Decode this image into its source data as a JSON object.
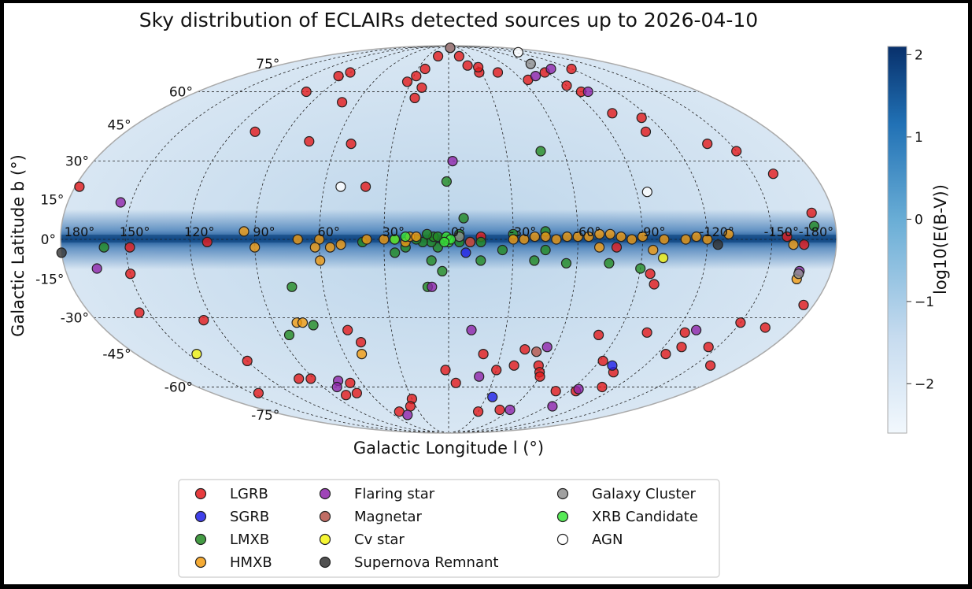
{
  "chart_data": {
    "type": "scatter",
    "projection": "mollweide",
    "title": "Sky distribution of ECLAIRs detected sources up to 2026-04-10",
    "xlabel": "Galactic Longitude l (°)",
    "ylabel": "Galactic Latitude b (°)",
    "x_ticks": [
      "180°",
      "150°",
      "120°",
      "90°",
      "60°",
      "30°",
      "0°",
      "-30°",
      "-60°",
      "-90°",
      "-120°",
      "-150°",
      "-180°"
    ],
    "y_ticks": [
      "75°",
      "60°",
      "45°",
      "30°",
      "15°",
      "0°",
      "-15°",
      "-30°",
      "-45°",
      "-60°",
      "-75°"
    ],
    "grid": true,
    "colorbar": {
      "label": "log10(E(B-V))",
      "ticks": [
        "2",
        "1",
        "0",
        "−1",
        "−2"
      ],
      "tick_values": [
        2,
        1,
        0,
        -1,
        -2
      ],
      "range": [
        -2.6,
        2.1
      ],
      "colors": [
        "#f2f8fd",
        "#c6dbef",
        "#6aaed6",
        "#2171b5",
        "#08306b"
      ]
    },
    "legend_position": "bottom-center",
    "series": [
      {
        "name": "LGRB",
        "color": "#e31a1c",
        "points": [
          [
            178,
            20
          ],
          [
            108,
            42
          ],
          [
            102,
            60
          ],
          [
            90,
            70
          ],
          [
            95,
            68
          ],
          [
            70,
            55
          ],
          [
            75,
            38
          ],
          [
            52,
            37
          ],
          [
            40,
            20
          ],
          [
            33,
            65
          ],
          [
            28,
            68
          ],
          [
            23,
            72
          ],
          [
            20,
            62
          ],
          [
            23,
            57
          ],
          [
            15,
            80
          ],
          [
            -5,
            87
          ],
          [
            -15,
            80
          ],
          [
            -20,
            74
          ],
          [
            -28,
            70
          ],
          [
            -30,
            73
          ],
          [
            -45,
            70
          ],
          [
            -65,
            66
          ],
          [
            -88,
            70
          ],
          [
            -90,
            63
          ],
          [
            -95,
            60
          ],
          [
            -120,
            72
          ],
          [
            -100,
            50
          ],
          [
            -115,
            48
          ],
          [
            -110,
            42
          ],
          [
            -138,
            37
          ],
          [
            -150,
            34
          ],
          [
            -160,
            25
          ],
          [
            -170,
            10
          ],
          [
            -157,
            1
          ],
          [
            -165,
            -2
          ],
          [
            148,
            -3
          ],
          [
            112,
            -1
          ],
          [
            -78,
            -3
          ],
          [
            -175,
            -25
          ],
          [
            150,
            -13
          ],
          [
            155,
            -28
          ],
          [
            125,
            -31
          ],
          [
            120,
            -48
          ],
          [
            145,
            -63
          ],
          [
            100,
            -56
          ],
          [
            92,
            -56
          ],
          [
            68,
            -58
          ],
          [
            70,
            -63
          ],
          [
            80,
            -64
          ],
          [
            53,
            -35
          ],
          [
            48,
            -40
          ],
          [
            -43,
            -43
          ],
          [
            -80,
            -37
          ],
          [
            -105,
            -36
          ],
          [
            -92,
            -48
          ],
          [
            -125,
            -36
          ],
          [
            -105,
            -53
          ],
          [
            -150,
            -32
          ],
          [
            -165,
            -34
          ],
          [
            -145,
            -42
          ],
          [
            -130,
            -42
          ],
          [
            -125,
            -45
          ],
          [
            -160,
            -50
          ],
          [
            -20,
            -45
          ],
          [
            -30,
            -52
          ],
          [
            -40,
            -50
          ],
          [
            -55,
            -50
          ],
          [
            -58,
            -53
          ],
          [
            -60,
            -55
          ],
          [
            -80,
            -62
          ],
          [
            -95,
            -62
          ],
          [
            -110,
            -60
          ],
          [
            -50,
            -72
          ],
          [
            -30,
            -73
          ],
          [
            -5,
            -58
          ],
          [
            30,
            -66
          ],
          [
            35,
            -70
          ],
          [
            50,
            -73
          ],
          [
            2,
            -52
          ],
          [
            -95,
            -13
          ],
          [
            -98,
            -17
          ],
          [
            -15,
            1
          ],
          [
            -10,
            -1
          ]
        ]
      },
      {
        "name": "SGRB",
        "color": "#1f1fe6",
        "points": [
          [
            -8,
            -5
          ],
          [
            -100,
            -50
          ],
          [
            -35,
            -65
          ]
        ]
      },
      {
        "name": "LMXB",
        "color": "#238b23",
        "points": [
          [
            160,
            -3
          ],
          [
            1,
            22
          ],
          [
            -7,
            8
          ],
          [
            -5,
            -1
          ],
          [
            -15,
            -1
          ],
          [
            -30,
            2
          ],
          [
            -45,
            3
          ],
          [
            -45,
            -4
          ],
          [
            -40,
            -8
          ],
          [
            -55,
            -9
          ],
          [
            -75,
            -9
          ],
          [
            -90,
            -11
          ],
          [
            -170,
            5
          ],
          [
            -48,
            34
          ],
          [
            -25,
            -4
          ],
          [
            -15,
            -8
          ],
          [
            20,
            -3
          ],
          [
            8,
            -8
          ],
          [
            5,
            -3
          ],
          [
            8,
            -1
          ],
          [
            7,
            1
          ],
          [
            12,
            -1
          ],
          [
            15,
            0
          ],
          [
            2,
            0
          ],
          [
            5,
            1
          ],
          [
            10,
            2
          ],
          [
            3,
            -12
          ],
          [
            10,
            -18
          ],
          [
            75,
            -18
          ],
          [
            85,
            -37
          ],
          [
            70,
            -33
          ],
          [
            25,
            -5
          ],
          [
            40,
            -1
          ],
          [
            -5,
            2
          ]
        ]
      },
      {
        "name": "HMXB",
        "color": "#f39c12",
        "points": [
          [
            95,
            3
          ],
          [
            70,
            0
          ],
          [
            60,
            0
          ],
          [
            62,
            -3
          ],
          [
            55,
            -3
          ],
          [
            50,
            -2
          ],
          [
            38,
            0
          ],
          [
            30,
            0
          ],
          [
            25,
            0
          ],
          [
            20,
            -1
          ],
          [
            18,
            1
          ],
          [
            15,
            1
          ],
          [
            -30,
            0
          ],
          [
            -35,
            0
          ],
          [
            -40,
            1
          ],
          [
            -45,
            1
          ],
          [
            -50,
            0
          ],
          [
            -55,
            1
          ],
          [
            -60,
            1
          ],
          [
            -65,
            1
          ],
          [
            -70,
            2
          ],
          [
            -75,
            2
          ],
          [
            -80,
            1
          ],
          [
            -85,
            0
          ],
          [
            -90,
            1
          ],
          [
            -100,
            0
          ],
          [
            -110,
            0
          ],
          [
            -120,
            0
          ],
          [
            -130,
            2
          ],
          [
            -160,
            -2
          ],
          [
            -165,
            -15
          ],
          [
            -70,
            -3
          ],
          [
            60,
            -8
          ],
          [
            78,
            -32
          ],
          [
            75,
            -32
          ],
          [
            50,
            -45
          ],
          [
            90,
            -3
          ],
          [
            -115,
            1
          ],
          [
            -95,
            -4
          ]
        ]
      },
      {
        "name": "Flaring star",
        "color": "#8e24aa",
        "points": [
          [
            -2,
            30
          ],
          [
            -75,
            68
          ],
          [
            -100,
            72
          ],
          [
            -100,
            60
          ],
          [
            155,
            14
          ],
          [
            165,
            -11
          ],
          [
            8,
            -18
          ],
          [
            -12,
            -35
          ],
          [
            -130,
            -35
          ],
          [
            -55,
            -42
          ],
          [
            -20,
            -55
          ],
          [
            -95,
            -61
          ],
          [
            -95,
            -70
          ],
          [
            -60,
            -72
          ],
          [
            75,
            -57
          ],
          [
            80,
            -60
          ],
          [
            45,
            -75
          ],
          [
            -165,
            -12
          ]
        ]
      },
      {
        "name": "Magnetar",
        "color": "#b5544a",
        "points": [
          [
            -10,
            -1
          ],
          [
            -50,
            -44
          ]
        ]
      },
      {
        "name": "Cv star",
        "color": "#f4f410",
        "points": [
          [
            145,
            -45
          ],
          [
            -100,
            -7
          ]
        ]
      },
      {
        "name": "Supernova Remnant",
        "color": "#333333",
        "points": [
          [
            180,
            -5
          ],
          [
            -125,
            -2
          ]
        ]
      },
      {
        "name": "Galaxy Cluster",
        "color": "#909090",
        "points": [
          [
            -90,
            75
          ],
          [
            -165,
            -13
          ],
          [
            -5,
            87
          ],
          [
            -5,
            1
          ]
        ]
      },
      {
        "name": "XRB Candidate",
        "color": "#39e639",
        "points": [
          [
            0,
            -1
          ],
          [
            0,
            0
          ],
          [
            1,
            1
          ],
          [
            -1,
            0
          ],
          [
            2,
            -1
          ],
          [
            25,
            0
          ],
          [
            20,
            1
          ]
        ]
      },
      {
        "name": "AGN",
        "color": "#ffffff",
        "points": [
          [
            -125,
            83
          ],
          [
            -95,
            18
          ],
          [
            52,
            20
          ]
        ]
      }
    ]
  }
}
